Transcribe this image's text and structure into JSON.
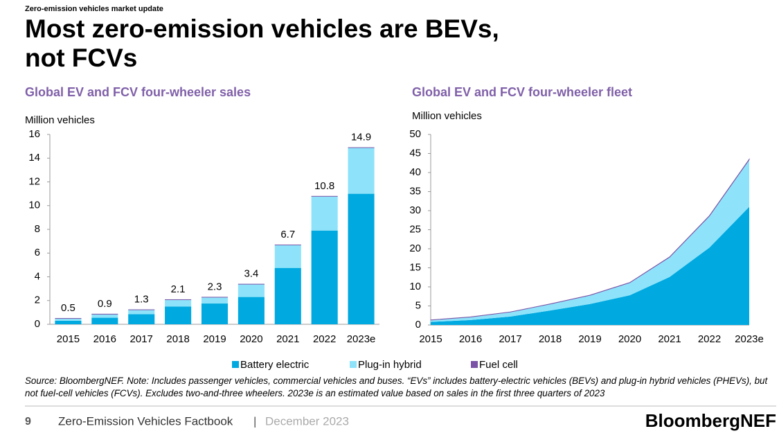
{
  "header": {
    "kicker": "Zero-emission vehicles market update",
    "title_line1": "Most zero-emission vehicles are BEVs,",
    "title_line2": "not FCVs"
  },
  "chart_data": [
    {
      "type": "bar",
      "stacked": true,
      "title": "Global EV and FCV four-wheeler sales",
      "ylabel": "Million vehicles",
      "categories": [
        "2015",
        "2016",
        "2017",
        "2018",
        "2019",
        "2020",
        "2021",
        "2022",
        "2023e"
      ],
      "series": [
        {
          "name": "Battery electric",
          "color": "#00a9e0",
          "values": [
            0.3,
            0.55,
            0.85,
            1.5,
            1.75,
            2.3,
            4.75,
            7.9,
            11.0
          ]
        },
        {
          "name": "Plug-in hybrid",
          "color": "#8ee3fa",
          "values": [
            0.22,
            0.33,
            0.4,
            0.6,
            0.55,
            1.1,
            1.95,
            2.9,
            3.9
          ]
        },
        {
          "name": "Fuel cell",
          "color": "#7a52a6",
          "values": [
            0.0,
            0.003,
            0.003,
            0.004,
            0.01,
            0.009,
            0.016,
            0.015,
            0.015
          ]
        }
      ],
      "totals": [
        0.5,
        0.9,
        1.3,
        2.1,
        2.3,
        3.4,
        6.7,
        10.8,
        14.9
      ],
      "ylim": [
        0,
        16
      ],
      "yticks": [
        0,
        2,
        4,
        6,
        8,
        10,
        12,
        14,
        16
      ]
    },
    {
      "type": "area",
      "stacked": true,
      "title": "Global EV and FCV four-wheeler fleet",
      "ylabel": "Million vehicles",
      "categories": [
        "2015",
        "2016",
        "2017",
        "2018",
        "2019",
        "2020",
        "2021",
        "2022",
        "2023e"
      ],
      "series": [
        {
          "color": "#00a9e0",
          "values": [
            0.8,
            1.3,
            2.2,
            3.8,
            5.5,
            7.8,
            12.6,
            20.3,
            31.0
          ]
        },
        {
          "color": "#8ee3fa",
          "values": [
            0.5,
            0.8,
            1.2,
            1.7,
            2.3,
            3.3,
            5.2,
            8.3,
            12.4
          ]
        },
        {
          "color": "#7a52a6",
          "values": [
            0.01,
            0.01,
            0.01,
            0.02,
            0.03,
            0.03,
            0.05,
            0.07,
            0.08
          ]
        }
      ],
      "ylim": [
        0,
        50
      ],
      "yticks": [
        0,
        5,
        10,
        15,
        20,
        25,
        30,
        35,
        40,
        45,
        50
      ]
    }
  ],
  "source": "Source: BloombergNEF. Note: Includes passenger vehicles, commercial vehicles and buses. “EVs” includes battery-electric vehicles (BEVs) and plug-in hybrid vehicles (PHEVs), but not fuel-cell vehicles (FCVs). Excludes two-and-three wheelers. 2023e is an estimated value based on sales in the first three quarters of 2023",
  "footer": {
    "page": "9",
    "publication": "Zero-Emission Vehicles Factbook",
    "separator": "|",
    "date": "December 2023",
    "logo": "BloombergNEF"
  }
}
